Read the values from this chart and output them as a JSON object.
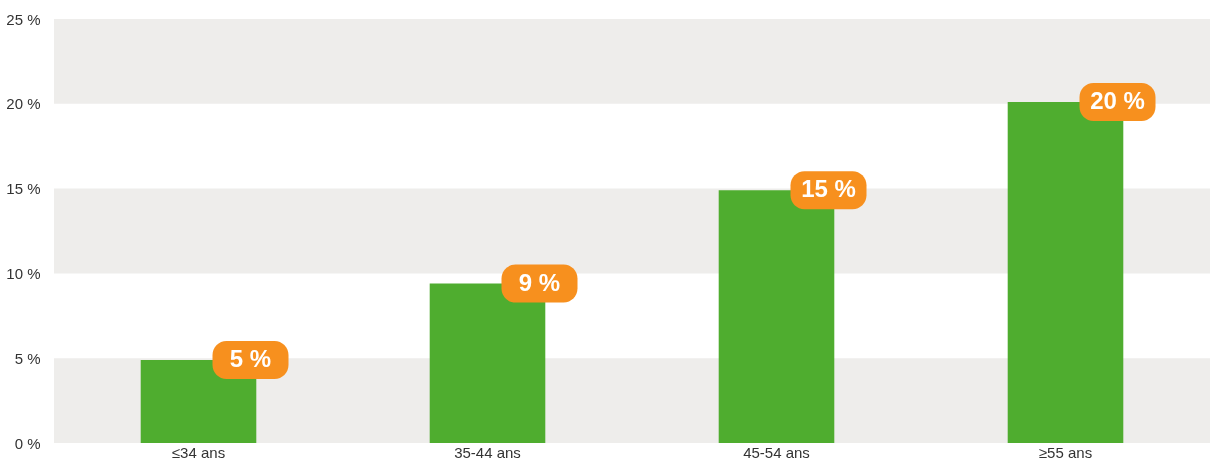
{
  "chart_data": {
    "type": "bar",
    "categories": [
      "≤34 ans",
      "35-44 ans",
      "45-54 ans",
      "≥55 ans"
    ],
    "values": [
      4.9,
      9.4,
      14.9,
      20.1
    ],
    "value_labels": [
      "5 %",
      "9 %",
      "15 %",
      "20 %"
    ],
    "color": "#4fad2f",
    "ylim": [
      0,
      25
    ],
    "yticks": [
      {
        "value": 0,
        "label": "0 %"
      },
      {
        "value": 5,
        "label": "5 %"
      },
      {
        "value": 10,
        "label": "10 %"
      },
      {
        "value": 15,
        "label": "15 %"
      },
      {
        "value": 20,
        "label": "20 %"
      },
      {
        "value": 25,
        "label": "25 %"
      }
    ],
    "bands": [
      {
        "axis": "y",
        "from": 0,
        "to": 5,
        "color": "#eeedeb"
      },
      {
        "axis": "y",
        "from": 10,
        "to": 15,
        "color": "#eeedeb"
      },
      {
        "axis": "y",
        "from": 20,
        "to": 25,
        "color": "#eeedeb"
      }
    ],
    "grid": false
  }
}
